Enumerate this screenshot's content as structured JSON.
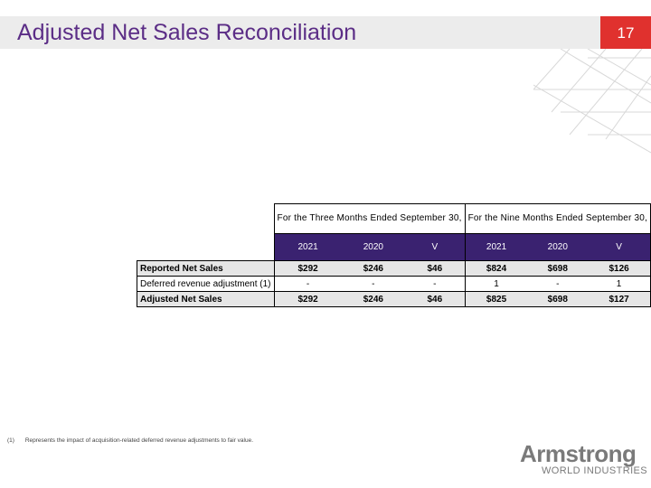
{
  "header": {
    "title": "Adjusted Net Sales Reconciliation",
    "page_number": "17"
  },
  "table": {
    "group_headers": [
      "For the Three Months Ended September 30,",
      "For the Nine Months Ended September 30,"
    ],
    "column_headers": [
      "2021",
      "2020",
      "V",
      "2021",
      "2020",
      "V"
    ],
    "rows": [
      {
        "label": "Reported Net Sales",
        "values": [
          "$292",
          "$246",
          "$46",
          "$824",
          "$698",
          "$126"
        ],
        "bold": true
      },
      {
        "label": "Deferred revenue adjustment (1)",
        "values": [
          "-",
          "-",
          "-",
          "1",
          "-",
          "1"
        ],
        "bold": false
      },
      {
        "label": "Adjusted Net Sales",
        "values": [
          "$292",
          "$246",
          "$46",
          "$825",
          "$698",
          "$127"
        ],
        "bold": true
      }
    ]
  },
  "footnote": {
    "marker": "(1)",
    "text": "Represents the impact of acquisition-related deferred revenue adjustments to fair value."
  },
  "logo": {
    "word": "Armstrong",
    "subtitle": "WORLD INDUSTRIES"
  },
  "colors": {
    "title": "#5b2d86",
    "header_fill": "#3a2270",
    "badge": "#e0312e",
    "row_shade": "#e6e6e6"
  }
}
